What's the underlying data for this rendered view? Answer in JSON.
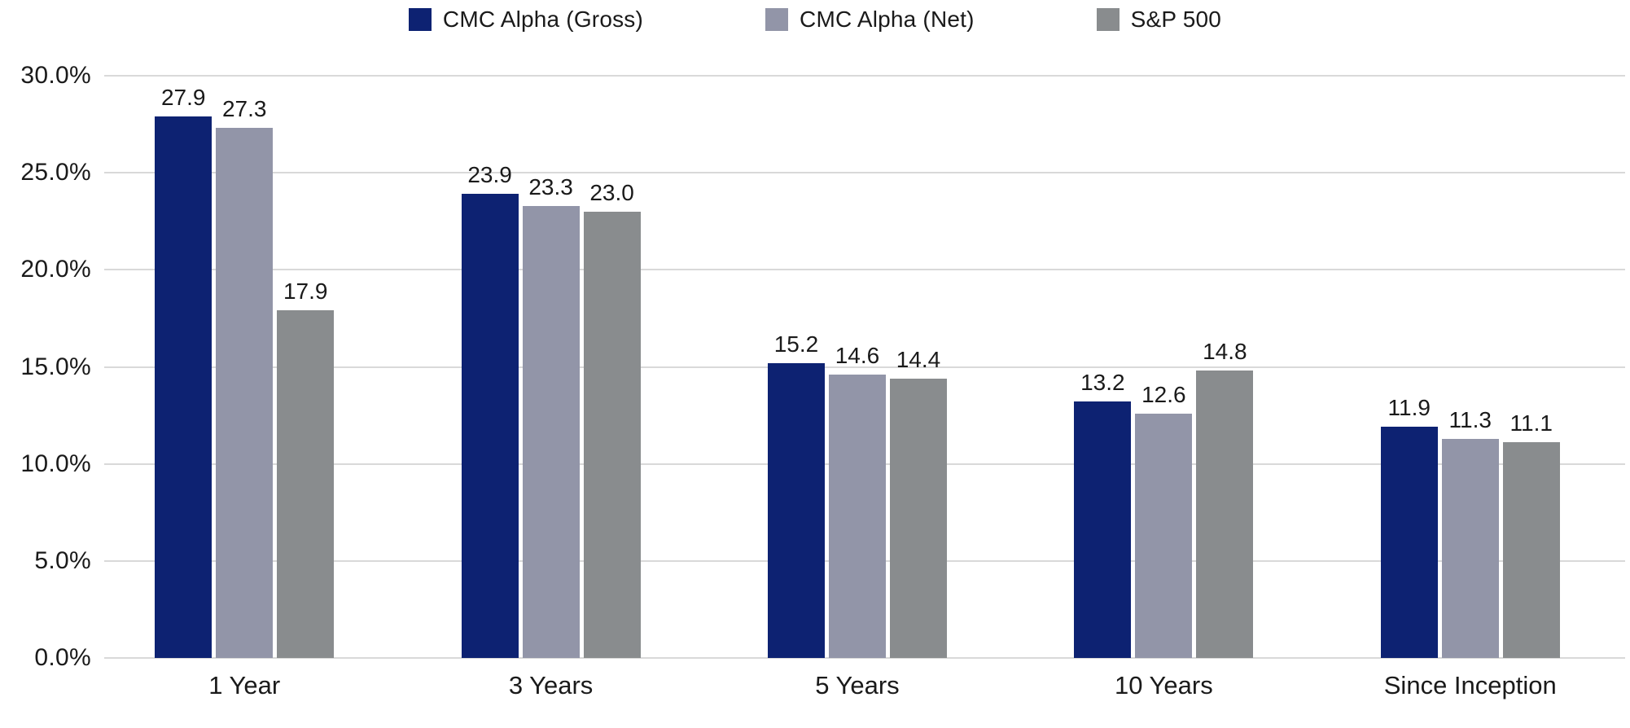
{
  "chart_data": {
    "type": "bar",
    "title": "",
    "categories": [
      "1 Year",
      "3 Years",
      "5 Years",
      "10 Years",
      "Since Inception"
    ],
    "series": [
      {
        "name": "CMC Alpha (Gross)",
        "color": "#0d2272",
        "values": [
          27.9,
          23.9,
          15.2,
          13.2,
          11.9
        ]
      },
      {
        "name": "CMC Alpha (Net)",
        "color": "#9295a8",
        "values": [
          27.3,
          23.3,
          14.6,
          12.6,
          11.3
        ]
      },
      {
        "name": "S&P 500",
        "color": "#898c8e",
        "values": [
          17.9,
          23.0,
          14.4,
          14.8,
          11.1
        ]
      }
    ],
    "y_axis": {
      "min": 0,
      "max": 30,
      "step": 5,
      "tick_labels": [
        "0.0%",
        "5.0%",
        "10.0%",
        "15.0%",
        "20.0%",
        "25.0%",
        "30.0%"
      ]
    },
    "grid": true,
    "legend_position": "top",
    "data_labels": true,
    "data_label_decimals": 1
  },
  "colors": {
    "gridline": "#d9d9d9",
    "text": "#1a1a1a",
    "background": "#ffffff"
  }
}
